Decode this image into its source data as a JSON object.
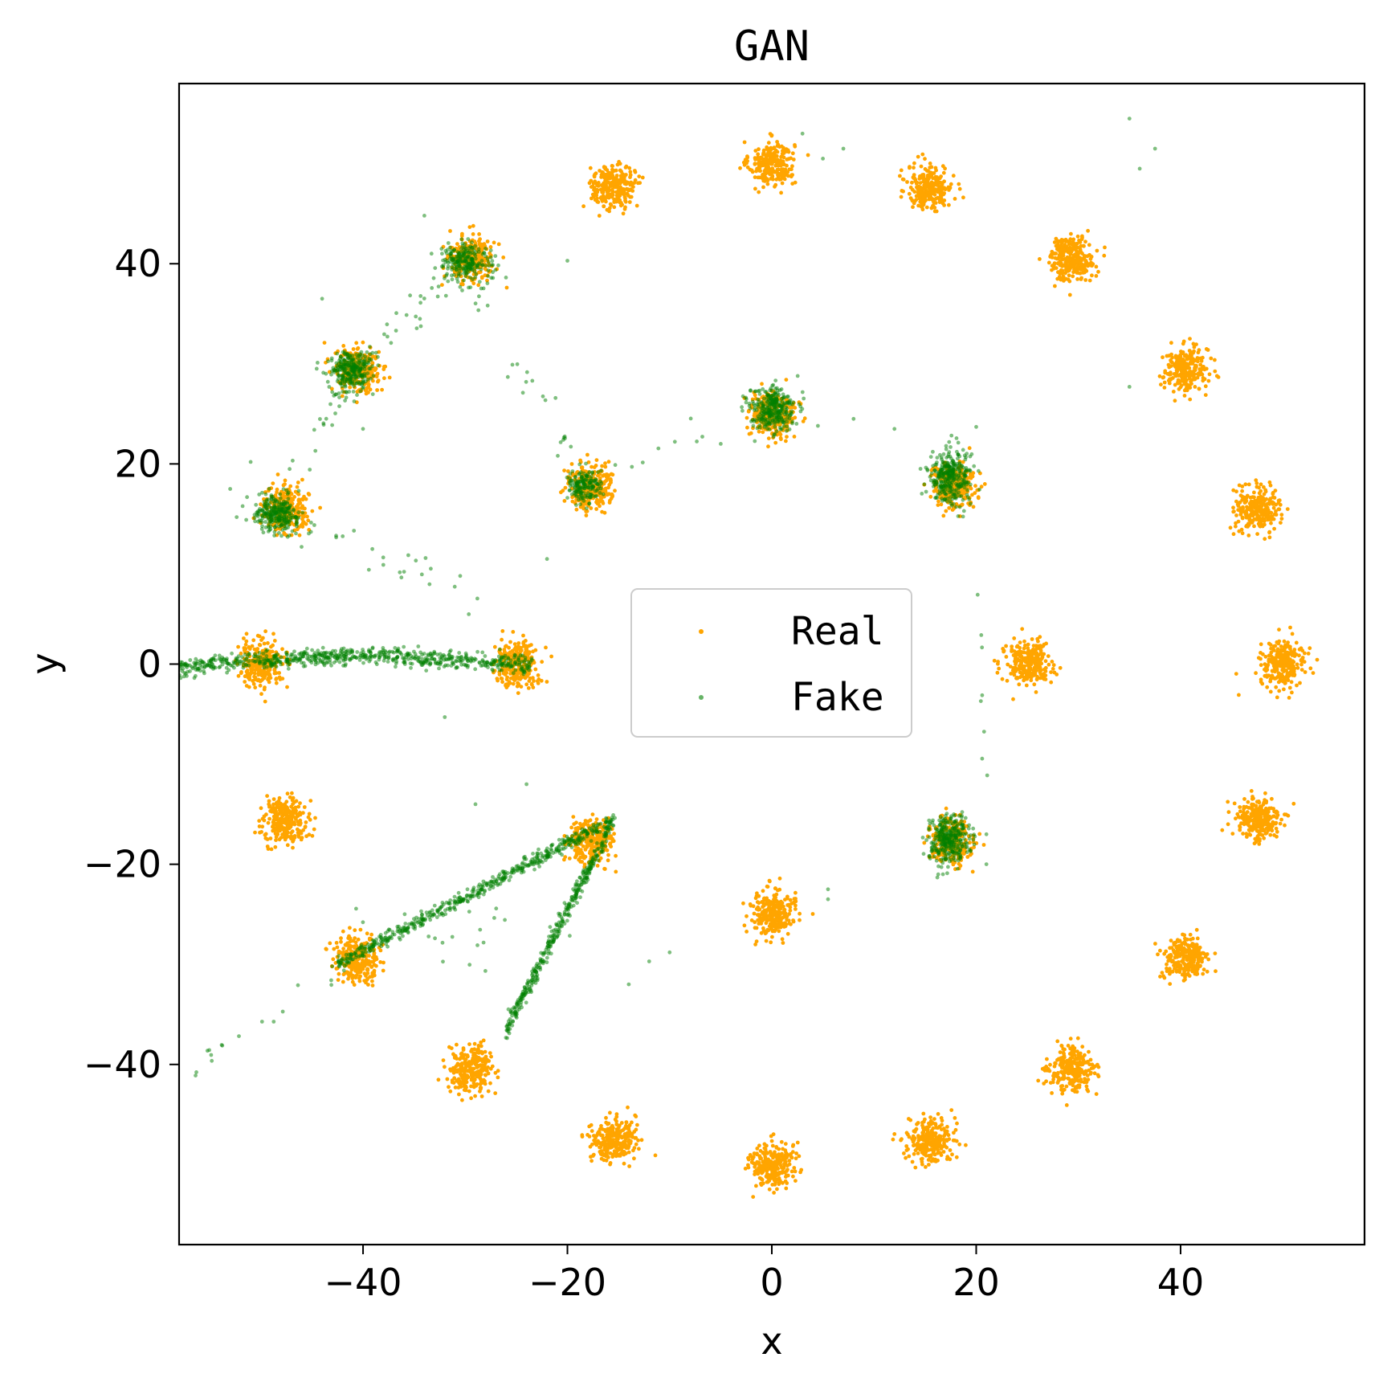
{
  "chart_data": {
    "type": "scatter",
    "title": "GAN",
    "xlabel": "x",
    "ylabel": "y",
    "xlim": [
      -58,
      58
    ],
    "ylim": [
      -58,
      58
    ],
    "x_ticks": [
      -40,
      -20,
      0,
      20,
      40
    ],
    "y_ticks": [
      -40,
      -20,
      0,
      20,
      40
    ],
    "x_tick_labels": [
      "−40",
      "−20",
      "0",
      "20",
      "40"
    ],
    "y_tick_labels": [
      "−40",
      "−20",
      "0",
      "20",
      "40"
    ],
    "grid": false,
    "legend_position": "center",
    "series": [
      {
        "name": "Real",
        "color": "#ffa500",
        "marker": "dot",
        "clusters": [
          {
            "x": 0,
            "y": 50
          },
          {
            "x": 15.5,
            "y": 47.6
          },
          {
            "x": 29.4,
            "y": 40.5
          },
          {
            "x": 40.5,
            "y": 29.4
          },
          {
            "x": 47.6,
            "y": 15.5
          },
          {
            "x": 50,
            "y": 0
          },
          {
            "x": 47.6,
            "y": -15.5
          },
          {
            "x": 40.5,
            "y": -29.4
          },
          {
            "x": 29.4,
            "y": -40.5
          },
          {
            "x": 15.5,
            "y": -47.6
          },
          {
            "x": 0,
            "y": -50
          },
          {
            "x": -15.5,
            "y": -47.6
          },
          {
            "x": -29.4,
            "y": -40.5
          },
          {
            "x": -40.5,
            "y": -29.4
          },
          {
            "x": -47.6,
            "y": -15.5
          },
          {
            "x": -50,
            "y": 0
          },
          {
            "x": -47.6,
            "y": 15.5
          },
          {
            "x": -40.5,
            "y": 29.4
          },
          {
            "x": -29.4,
            "y": 40.5
          },
          {
            "x": -15.5,
            "y": 47.6
          },
          {
            "x": 0,
            "y": 25
          },
          {
            "x": 17.7,
            "y": 17.7
          },
          {
            "x": 25,
            "y": 0
          },
          {
            "x": 17.7,
            "y": -17.7
          },
          {
            "x": 0,
            "y": -25
          },
          {
            "x": -17.7,
            "y": -17.7
          },
          {
            "x": -25,
            "y": 0
          },
          {
            "x": -17.7,
            "y": 17.7
          }
        ],
        "cluster_std": 1.1,
        "points_per_cluster": 260
      },
      {
        "name": "Fake",
        "color": "#008000",
        "marker": "dot",
        "blobs": [
          {
            "x": -30,
            "y": 40.2,
            "sx": 1.2,
            "sy": 0.9,
            "n": 220
          },
          {
            "x": -41.2,
            "y": 29.2,
            "sx": 1.1,
            "sy": 1.0,
            "n": 260
          },
          {
            "x": -48.5,
            "y": 15.0,
            "sx": 1.1,
            "sy": 0.9,
            "n": 260
          },
          {
            "x": -18.5,
            "y": 17.8,
            "sx": 0.8,
            "sy": 0.8,
            "n": 160
          },
          {
            "x": 0.0,
            "y": 25.5,
            "sx": 1.2,
            "sy": 1.1,
            "n": 300
          },
          {
            "x": 17.4,
            "y": 18.6,
            "sx": 1.0,
            "sy": 1.4,
            "n": 320
          },
          {
            "x": 17.3,
            "y": -17.5,
            "sx": 1.0,
            "sy": 1.3,
            "n": 320
          }
        ],
        "streaks": [
          {
            "x1": -58,
            "y1": -0.4,
            "x2": -23.5,
            "y2": -0.1,
            "bend": 1.0,
            "width": 0.45,
            "n": 700
          },
          {
            "x1": -42.5,
            "y1": -30,
            "x2": -15.5,
            "y2": -15.5,
            "bend": 0,
            "width": 0.35,
            "n": 520
          },
          {
            "x1": -26,
            "y1": -36.5,
            "x2": -15.5,
            "y2": -15.7,
            "bend": 0,
            "width": 0.45,
            "n": 360
          },
          {
            "x1": -48.5,
            "y1": 15.0,
            "x2": -41.2,
            "y2": 29.2,
            "bend": 0,
            "width": 1.2,
            "n": 26
          },
          {
            "x1": -41.2,
            "y1": 29.2,
            "x2": -30.0,
            "y2": 40.2,
            "bend": 0,
            "width": 1.2,
            "n": 34
          },
          {
            "x1": -30.0,
            "y1": 40.2,
            "x2": -18.5,
            "y2": 17.8,
            "bend": 0,
            "width": 1.2,
            "n": 32
          },
          {
            "x1": -48.5,
            "y1": 15.0,
            "x2": -27,
            "y2": 6.0,
            "bend": 0,
            "width": 1.0,
            "n": 26
          },
          {
            "x1": -18.5,
            "y1": 17.8,
            "x2": -7,
            "y2": 23.0,
            "bend": 0,
            "width": 0.6,
            "n": 8
          },
          {
            "x1": -57,
            "y1": -41,
            "x2": -42.5,
            "y2": -30.0,
            "bend": 0,
            "width": 0.8,
            "n": 16
          },
          {
            "x1": 20,
            "y1": 8.0,
            "x2": 21,
            "y2": -12.0,
            "bend": 0,
            "width": 0.5,
            "n": 8
          },
          {
            "x1": -40,
            "y1": -25,
            "x2": -20,
            "y2": -28,
            "bend": 0,
            "width": 2.0,
            "n": 24
          }
        ],
        "outliers": [
          {
            "x": 35,
            "y": 54.5
          },
          {
            "x": 37.5,
            "y": 51.5
          },
          {
            "x": 36,
            "y": 49.5
          },
          {
            "x": 7,
            "y": 51.5
          },
          {
            "x": 3,
            "y": 53
          },
          {
            "x": 5,
            "y": 50.5
          },
          {
            "x": -34,
            "y": 44.8
          },
          {
            "x": -20,
            "y": 40.3
          },
          {
            "x": -44,
            "y": 36.5
          },
          {
            "x": 35,
            "y": 27.7
          },
          {
            "x": 8,
            "y": 24.5
          },
          {
            "x": 12,
            "y": 23.5
          },
          {
            "x": -40,
            "y": 23.5
          },
          {
            "x": -22,
            "y": 10.5
          },
          {
            "x": -5,
            "y": 22
          },
          {
            "x": -32,
            "y": -5.3
          },
          {
            "x": -24,
            "y": -12
          },
          {
            "x": -29,
            "y": -14
          },
          {
            "x": 5.5,
            "y": -22.5
          },
          {
            "x": 5.5,
            "y": -23.5
          },
          {
            "x": -10,
            "y": -28.8
          },
          {
            "x": -14,
            "y": -32
          },
          {
            "x": -12,
            "y": -29.7
          },
          {
            "x": 21,
            "y": -17
          },
          {
            "x": 21,
            "y": -20
          },
          {
            "x": 20,
            "y": 23.7
          },
          {
            "x": -51,
            "y": 20.2
          },
          {
            "x": -53,
            "y": 17.5
          }
        ]
      }
    ],
    "legend": [
      {
        "label": "Real",
        "color": "#ffa500"
      },
      {
        "label": "Fake",
        "color": "#008000"
      }
    ]
  }
}
